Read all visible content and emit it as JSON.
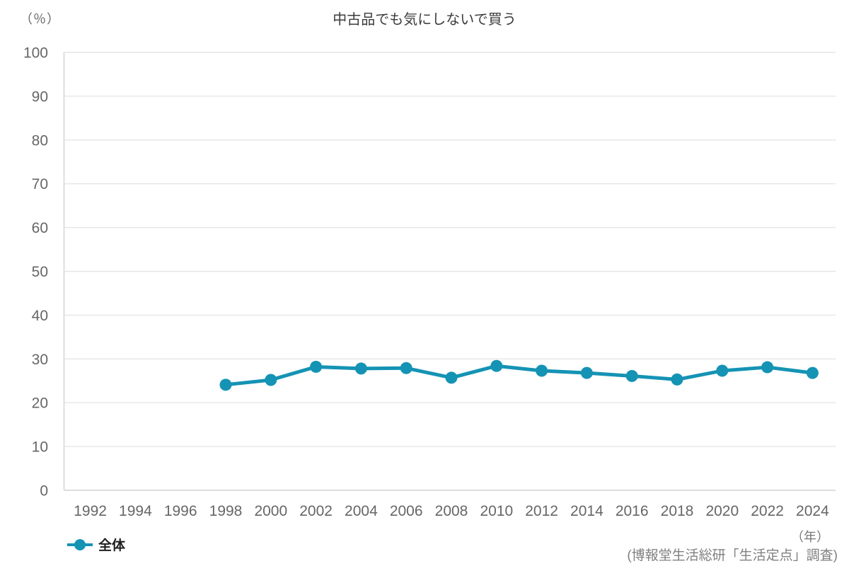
{
  "chart_data": {
    "type": "line",
    "title": "中古品でも気にしないで買う",
    "y_unit": "（％）",
    "x_unit": "（年）",
    "source": "(博報堂生活総研「生活定点」調査)",
    "categories": [
      1992,
      1994,
      1996,
      1998,
      2000,
      2002,
      2004,
      2006,
      2008,
      2010,
      2012,
      2014,
      2016,
      2018,
      2020,
      2022,
      2024
    ],
    "ylim": [
      0,
      100
    ],
    "yticks": [
      0,
      10,
      20,
      30,
      40,
      50,
      60,
      70,
      80,
      90,
      100
    ],
    "grid": "horizontal",
    "legend_position": "bottom-left",
    "colors": {
      "series": "#1593b4",
      "gridline": "#e6e6e6",
      "axis_line": "#dddddd",
      "tick_label": "#666666",
      "title_text": "#3b3b3b",
      "source_text": "#808080"
    },
    "series": [
      {
        "name": "全体",
        "color": "#1593b4",
        "x": [
          1998,
          2000,
          2002,
          2004,
          2006,
          2008,
          2010,
          2012,
          2014,
          2016,
          2018,
          2020,
          2022,
          2024
        ],
        "values": [
          24.1,
          25.2,
          28.2,
          27.8,
          27.9,
          25.7,
          28.4,
          27.3,
          26.8,
          26.1,
          25.3,
          27.3,
          28.1,
          26.8
        ]
      }
    ]
  }
}
